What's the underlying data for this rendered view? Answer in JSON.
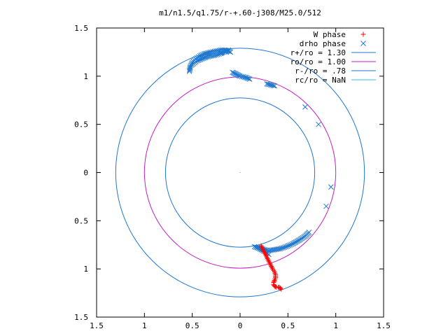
{
  "chart_data": {
    "type": "scatter",
    "title": "m1/n1.5/q1.75/r-+.60-j308/M25.0/512",
    "xlim": [
      -1.5,
      1.5
    ],
    "ylim": [
      -1.5,
      1.5
    ],
    "grid": false,
    "legend_position": "top-right",
    "x_tick_labels": [
      "1.5",
      "1",
      "0.5",
      "0",
      "0.5",
      "1",
      "1.5"
    ],
    "x_tick_values": [
      -1.5,
      -1,
      -0.5,
      0,
      0.5,
      1,
      1.5
    ],
    "y_tick_labels": [
      "1.5",
      "1",
      "0.5",
      "0",
      "0.5",
      "1",
      "1.5"
    ],
    "y_tick_values": [
      1.5,
      1,
      0.5,
      0,
      -0.5,
      -1,
      -1.5
    ],
    "series": [
      {
        "name": "W phase",
        "kind": "points",
        "marker": "plus",
        "color": "#ff0000",
        "x": [
          0.22,
          0.24,
          0.26,
          0.28,
          0.3,
          0.32,
          0.34,
          0.36,
          0.37,
          0.37,
          0.36,
          0.35,
          0.35,
          0.36,
          0.38,
          0.4,
          0.42,
          0.43,
          0.42,
          0.41
        ],
        "y": [
          -0.76,
          -0.8,
          -0.84,
          -0.88,
          -0.92,
          -0.96,
          -1.0,
          -1.03,
          -1.06,
          -1.09,
          -1.12,
          -1.14,
          -1.16,
          -1.18,
          -1.19,
          -1.19,
          -1.2,
          -1.21,
          -1.2,
          -1.19
        ]
      },
      {
        "name": "drho phase",
        "kind": "points",
        "marker": "cross",
        "color": "#1f77d0",
        "x": [
          -0.53,
          -0.52,
          -0.5,
          -0.48,
          -0.45,
          -0.42,
          -0.38,
          -0.34,
          -0.3,
          -0.25,
          -0.2,
          -0.15,
          -0.12,
          -0.1,
          -0.08,
          -0.06,
          -0.04,
          -0.02,
          0.0,
          0.05,
          0.1,
          0.28,
          0.36,
          0.68,
          0.82,
          0.95,
          0.9,
          0.72,
          0.68,
          0.62,
          0.55,
          0.48,
          0.42,
          0.36,
          0.3,
          0.25,
          0.2,
          0.15,
          0.18,
          0.22,
          0.26,
          0.3,
          -0.2,
          -0.18,
          -0.15,
          -0.12,
          -0.22,
          -0.25,
          -0.3,
          -0.35,
          -0.4,
          -0.45,
          -0.5
        ],
        "y": [
          1.05,
          1.1,
          1.14,
          1.17,
          1.19,
          1.21,
          1.23,
          1.24,
          1.25,
          1.26,
          1.27,
          1.27,
          1.26,
          1.25,
          1.04,
          1.03,
          1.02,
          1.01,
          1.0,
          0.99,
          0.97,
          0.92,
          0.9,
          0.68,
          0.5,
          -0.15,
          -0.35,
          -0.62,
          -0.66,
          -0.7,
          -0.74,
          -0.77,
          -0.79,
          -0.8,
          -0.81,
          -0.8,
          -0.78,
          -0.77,
          -0.78,
          -0.8,
          -0.82,
          -0.85,
          1.24,
          1.25,
          1.26,
          1.27,
          1.23,
          1.22,
          1.21,
          1.2,
          1.18,
          1.16,
          1.12
        ]
      },
      {
        "name": "r+/ro = 1.30",
        "kind": "circle",
        "radius": 1.3,
        "color": "#1f77d0"
      },
      {
        "name": "ro/ro = 1.00",
        "kind": "circle",
        "radius": 1.0,
        "color": "#c020c0"
      },
      {
        "name": "r-/ro = .78",
        "kind": "circle",
        "radius": 0.78,
        "color": "#1f77d0"
      },
      {
        "name": "rc/ro = NaN",
        "kind": "circle",
        "radius": null,
        "color": "#33bbdd"
      }
    ]
  }
}
